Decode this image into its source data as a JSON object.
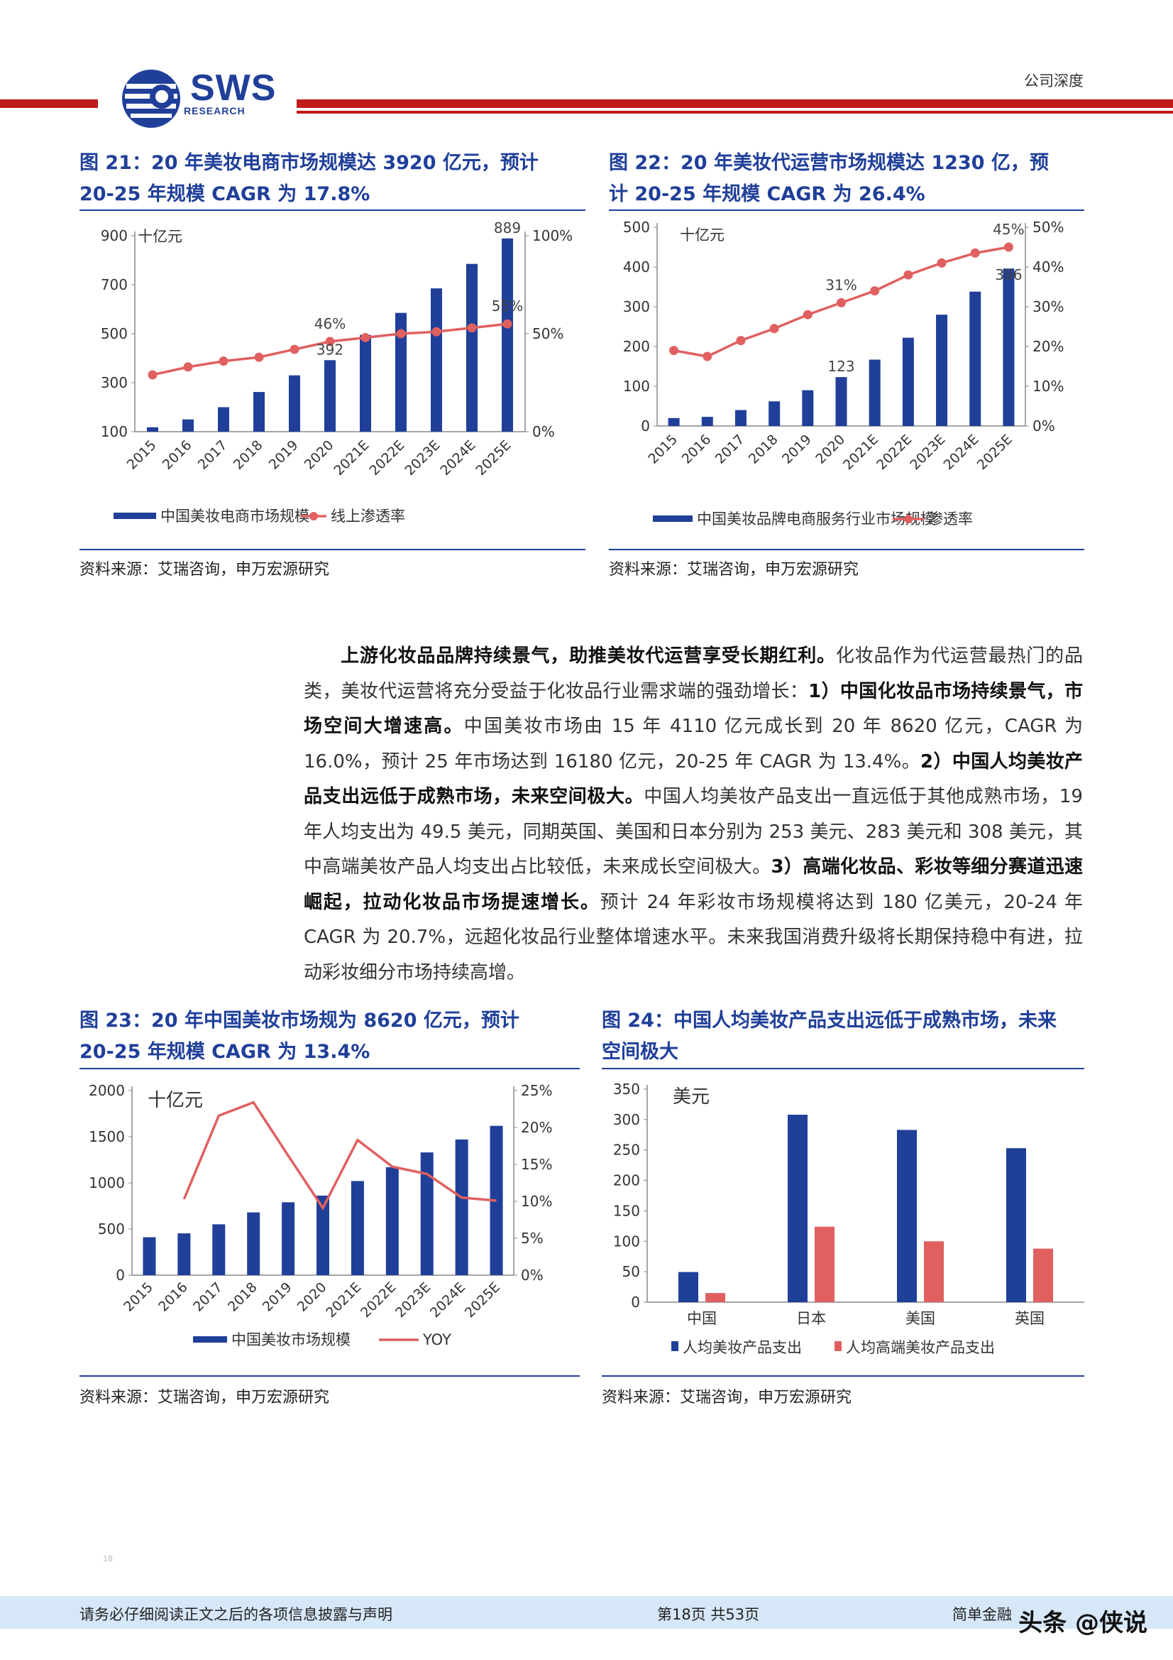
{
  "header": {
    "logo_text": "SWS",
    "logo_sub": "RESEARCH",
    "section_label": "公司深度"
  },
  "figures": {
    "fig21": {
      "title_line1": "图 21：20 年美妆电商市场规模达 3920 亿元，预计",
      "title_line2": "20-25 年规模 CAGR 为 17.8%",
      "source": "资料来源：艾瑞咨询，申万宏源研究"
    },
    "fig22": {
      "title_line1": "图 22：20 年美妆代运营市场规模达 1230 亿，预",
      "title_line2": "计 20-25 年规模 CAGR 为 26.4%",
      "source": "资料来源：艾瑞咨询，申万宏源研究"
    },
    "fig23": {
      "title_line1": "图 23：20 年中国美妆市场规为 8620 亿元，预计",
      "title_line2": "20-25 年规模 CAGR 为 13.4%",
      "source": "资料来源：艾瑞咨询，申万宏源研究"
    },
    "fig24": {
      "title_line1": "图 24：中国人均美妆产品支出远低于成熟市场，未来",
      "title_line2": "空间极大",
      "source": "资料来源：艾瑞咨询，申万宏源研究"
    }
  },
  "body": {
    "p_bold1": "上游化妆品品牌持续景气，助推美妆代运营享受长期红利。",
    "p_text1": "化妆品作为代运营最热门的品类，美妆代运营将充分受益于化妆品行业需求端的强劲增长：",
    "p_bold2": "1）中国化妆品市场持续景气，市场空间大增速高。",
    "p_text2": "中国美妆市场由 15 年 4110 亿元成长到 20 年 8620 亿元，CAGR 为 16.0%，预计 25 年市场达到 16180 亿元，20-25 年 CAGR 为 13.4%。",
    "p_bold3": "2）中国人均美妆产品支出远低于成熟市场，未来空间极大。",
    "p_text3": "中国人均美妆产品支出一直远低于其他成熟市场，19 年人均支出为 49.5 美元，同期英国、美国和日本分别为 253 美元、283 美元和 308 美元，其中高端美妆产品人均支出占比较低，未来成长空间极大。",
    "p_bold4": "3）高端化妆品、彩妆等细分赛道迅速崛起，拉动化妆品市场提速增长。",
    "p_text4": "预计 24 年彩妆市场规模将达到 180 亿美元，20-24 年 CAGR 为 20.7%，远超化妆品行业整体增速水平。未来我国消费升级将长期保持稳中有进，拉动彩妆细分市场持续高增。"
  },
  "footer": {
    "left": "请务必仔细阅读正文之后的各项信息披露与声明",
    "center": "第18页  共53页",
    "right": "简单金融",
    "page_tiny": "18",
    "watermark": "头条 @侠说"
  },
  "colors": {
    "bar_blue": "#1f3f99",
    "line_red": "#e06060",
    "bar_red": "#e06060",
    "title_blue": "#1f3f99",
    "header_red": "#c11a1a",
    "footer_bg": "#d6e7f8"
  },
  "chart_data": [
    {
      "id": "fig21",
      "type": "bar",
      "categories": [
        "2015",
        "2016",
        "2017",
        "2018",
        "2019",
        "2020",
        "2021E",
        "2022E",
        "2023E",
        "2024E",
        "2025E"
      ],
      "unit_label": "十亿元",
      "ylim_left": [
        100,
        900
      ],
      "yticks_left": [
        100,
        300,
        500,
        700,
        900
      ],
      "ylim_right": [
        0,
        100
      ],
      "yticks_right": [
        "0%",
        "50%",
        "100%"
      ],
      "series": [
        {
          "name": "中国美妆电商市场规模",
          "kind": "bar",
          "axis": "left",
          "values": [
            118,
            150,
            200,
            262,
            330,
            392,
            495,
            585,
            685,
            785,
            889
          ]
        },
        {
          "name": "线上渗透率",
          "kind": "line",
          "axis": "right",
          "values": [
            29,
            33,
            36,
            38,
            42,
            46,
            48,
            50,
            51,
            53,
            55
          ]
        }
      ],
      "annotations": [
        {
          "text": "889",
          "series": 0,
          "index": 10
        },
        {
          "text": "392",
          "series": 0,
          "index": 5
        },
        {
          "text": "46%",
          "series": 1,
          "index": 5
        },
        {
          "text": "55%",
          "series": 1,
          "index": 10
        }
      ]
    },
    {
      "id": "fig22",
      "type": "bar",
      "categories": [
        "2015",
        "2016",
        "2017",
        "2018",
        "2019",
        "2020",
        "2021E",
        "2022E",
        "2023E",
        "2024E",
        "2025E"
      ],
      "unit_label": "十亿元",
      "ylim_left": [
        0,
        500
      ],
      "yticks_left": [
        0,
        100,
        200,
        300,
        400,
        500
      ],
      "ylim_right": [
        0,
        50
      ],
      "yticks_right": [
        "0%",
        "10%",
        "20%",
        "30%",
        "40%",
        "50%"
      ],
      "series": [
        {
          "name": "中国美妆品牌电商服务行业市场规模",
          "kind": "bar",
          "axis": "left",
          "values": [
            20,
            23,
            40,
            62,
            90,
            123,
            167,
            222,
            280,
            338,
            396
          ]
        },
        {
          "name": "渗透率",
          "kind": "line",
          "axis": "right",
          "values": [
            19,
            17.5,
            21.5,
            24.5,
            28,
            31,
            34,
            38,
            41,
            43.5,
            45
          ]
        }
      ],
      "annotations": [
        {
          "text": "123",
          "series": 0,
          "index": 5
        },
        {
          "text": "396",
          "series": 0,
          "index": 10
        },
        {
          "text": "31%",
          "series": 1,
          "index": 5
        },
        {
          "text": "45%",
          "series": 1,
          "index": 10
        }
      ]
    },
    {
      "id": "fig23",
      "type": "bar",
      "categories": [
        "2015",
        "2016",
        "2017",
        "2018",
        "2019",
        "2020",
        "2021E",
        "2022E",
        "2023E",
        "2024E",
        "2025E"
      ],
      "unit_label": "十亿元",
      "ylim_left": [
        0,
        2000
      ],
      "yticks_left": [
        0,
        500,
        1000,
        1500,
        2000
      ],
      "ylim_right": [
        0,
        25
      ],
      "yticks_right": [
        "0%",
        "5%",
        "10%",
        "15%",
        "20%",
        "25%"
      ],
      "series": [
        {
          "name": "中国美妆市场规模",
          "kind": "bar",
          "axis": "left",
          "values": [
            411,
            453,
            551,
            680,
            790,
            862,
            1020,
            1170,
            1330,
            1470,
            1618
          ]
        },
        {
          "name": "YOY",
          "kind": "line",
          "axis": "right",
          "start_index": 1,
          "values": [
            null,
            10.3,
            21.6,
            23.4,
            16.2,
            9.1,
            18.3,
            14.7,
            13.7,
            10.5,
            10.1
          ]
        }
      ],
      "annotations": []
    },
    {
      "id": "fig24",
      "type": "bar",
      "categories": [
        "中国",
        "日本",
        "美国",
        "英国"
      ],
      "unit_label": "美元",
      "ylim_left": [
        0,
        350
      ],
      "yticks_left": [
        0,
        50,
        100,
        150,
        200,
        250,
        300,
        350
      ],
      "series": [
        {
          "name": "人均美妆产品支出",
          "kind": "bar",
          "color_key": "bar_blue",
          "values": [
            49.5,
            308,
            283,
            253
          ]
        },
        {
          "name": "人均高端美妆产品支出",
          "kind": "bar",
          "color_key": "bar_red",
          "values": [
            15,
            124,
            100,
            88
          ]
        }
      ],
      "annotations": []
    }
  ]
}
